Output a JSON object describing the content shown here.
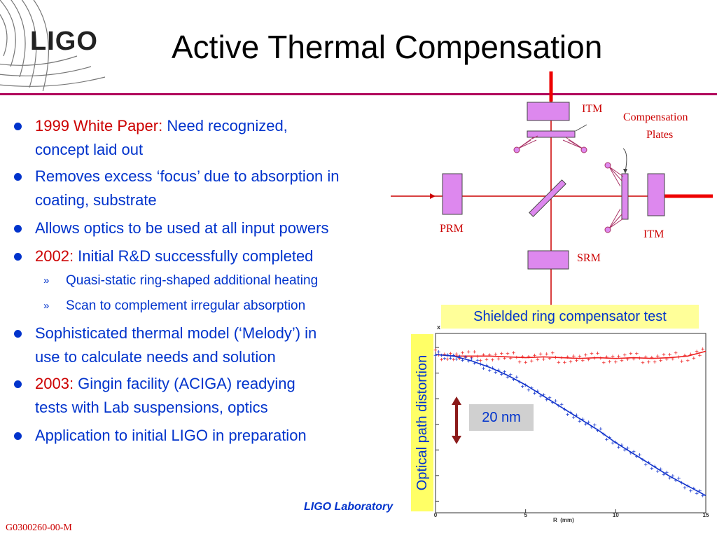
{
  "logo": {
    "text": "LIGO"
  },
  "title": "Active Thermal Compensation",
  "bullets": [
    {
      "highlight": "1999 White Paper:",
      "text": " Need recognized,",
      "line2": "concept laid out"
    },
    {
      "highlight": "",
      "text": "Removes excess ‘focus’ due to absorption in",
      "line2": "coating, substrate"
    },
    {
      "highlight": "",
      "text": "Allows optics to be used at all input powers",
      "line2": ""
    },
    {
      "highlight": "2002:",
      "text": " Initial R&D successfully completed",
      "line2": ""
    }
  ],
  "sub_bullets": [
    {
      "marker": "»",
      "text": "Quasi-static ring-shaped additional heating"
    },
    {
      "marker": "»",
      "text": "Scan to complement irregular absorption"
    }
  ],
  "bullets_after": [
    {
      "highlight": "",
      "text": "Sophisticated thermal model (‘Melody’) in",
      "line2": "use to calculate needs and solution"
    },
    {
      "highlight": "2003:",
      "text": " Gingin facility (ACIGA) readying",
      "line2": "tests  with Lab suspensions, optics"
    },
    {
      "highlight": "",
      "text": "Application to initial LIGO in preparation",
      "line2": ""
    }
  ],
  "diagram": {
    "labels": {
      "itm_top": "ITM",
      "itm_right": "ITM",
      "prm": "PRM",
      "srm": "SRM",
      "comp_line1": "Compensation",
      "comp_line2": "Plates"
    }
  },
  "chart": {
    "title": "Shielded ring compensator test",
    "ylabel": "Optical path distortion",
    "scale_label": "20 nm"
  },
  "chart_data": {
    "type": "scatter",
    "title": "Shielded ring compensator test",
    "xlabel": "R  (mm)",
    "ylabel": "Optical path distortion",
    "xlim": [
      0,
      15
    ],
    "x_ticks": [
      "0",
      "5",
      "10",
      "15"
    ],
    "y_axis_top_label": "x",
    "grid": false,
    "annotations": [
      "20 nm"
    ],
    "series": [
      {
        "color": "#ee2222",
        "x": [
          0,
          1,
          2,
          3,
          4,
          5,
          6,
          7,
          8,
          9,
          10,
          11,
          12,
          13,
          14,
          15
        ],
        "y": [
          0,
          -1,
          -1,
          -1,
          -1.5,
          -2,
          -1.5,
          -2,
          -2.5,
          -2,
          -2.5,
          -2,
          -2.5,
          -2,
          -1,
          2
        ]
      },
      {
        "color": "#1133cc",
        "x": [
          0,
          1,
          2,
          3,
          4,
          5,
          6,
          7,
          8,
          9,
          10,
          11,
          12,
          13,
          14,
          15
        ],
        "y": [
          0,
          -1,
          -4,
          -8,
          -13,
          -19,
          -26,
          -33,
          -40,
          -47,
          -55,
          -62,
          -69,
          -76,
          -82,
          -88
        ]
      }
    ]
  },
  "footer": {
    "lab": "LIGO Laboratory",
    "doc_id": "G0300260-00-M"
  },
  "colors": {
    "accent": "#b0005a",
    "bullet_text": "#0033cc",
    "highlight": "#cc0000",
    "beam": "#cc0000",
    "optic_fill": "#dd88ee"
  }
}
